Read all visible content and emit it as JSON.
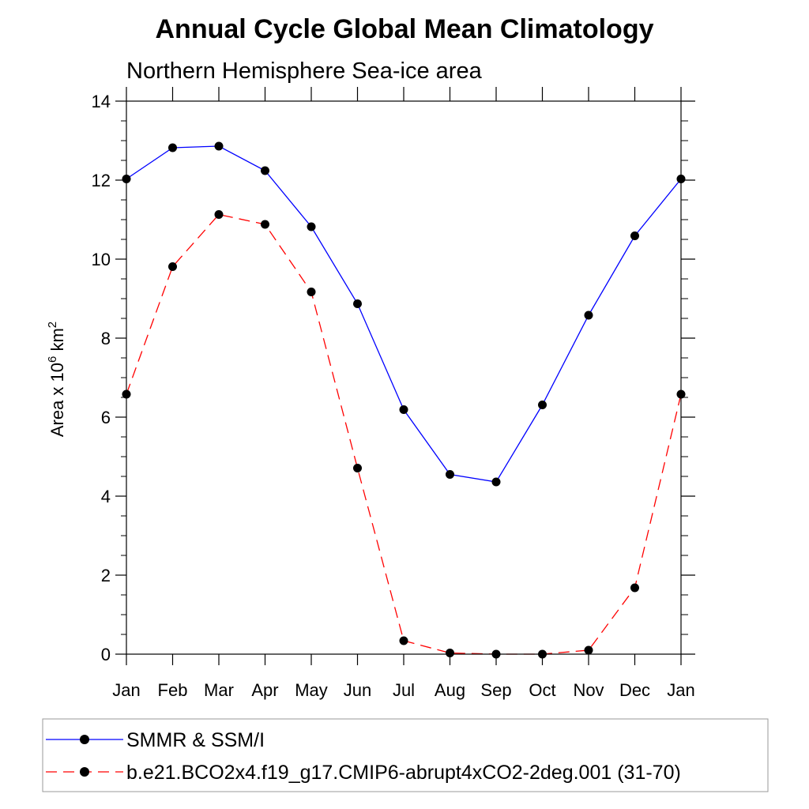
{
  "chart_data": {
    "type": "line",
    "title": "Annual Cycle Global Mean Climatology",
    "subtitle": "Northern Hemisphere Sea-ice area",
    "ylabel": "Area x 10",
    "ylabel_sup": "6",
    "ylabel_unit": " km",
    "ylabel_unit_sup": "2",
    "categories": [
      "Jan",
      "Feb",
      "Mar",
      "Apr",
      "May",
      "Jun",
      "Jul",
      "Aug",
      "Sep",
      "Oct",
      "Nov",
      "Dec",
      "Jan"
    ],
    "ylim": [
      0,
      14
    ],
    "yticks": [
      0,
      2,
      4,
      6,
      8,
      10,
      12,
      14
    ],
    "series": [
      {
        "name": "SMMR & SSM/I",
        "color": "#0000ff",
        "dash": "solid",
        "values": [
          12.03,
          12.82,
          12.86,
          12.24,
          10.82,
          8.87,
          6.19,
          4.55,
          4.36,
          6.31,
          8.58,
          10.59,
          12.03
        ]
      },
      {
        "name": "b.e21.BCO2x4.f19_g17.CMIP6-abrupt4xCO2-2deg.001 (31-70)",
        "color": "#ff0000",
        "dash": "dashed",
        "values": [
          6.58,
          9.81,
          11.13,
          10.88,
          9.17,
          4.71,
          0.34,
          0.03,
          0.0,
          0.0,
          0.1,
          1.68,
          6.58
        ]
      }
    ],
    "legend_placement": "bottom"
  }
}
